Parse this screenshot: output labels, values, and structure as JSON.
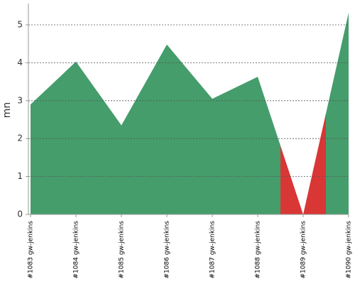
{
  "chart_data": {
    "type": "area",
    "y_label": "mn",
    "categories": [
      "#1083 gw-jenkins",
      "#1084 gw-jenkins",
      "#1085 gw-jenkins",
      "#1086 gw-jenkins",
      "#1087 gw-jenkins",
      "#1088 gw-jenkins",
      "#1089 gw-jenkins",
      "#1090 gw-jenkins"
    ],
    "values": [
      2.9,
      4.03,
      2.35,
      4.48,
      3.05,
      3.63,
      0,
      5.32
    ],
    "point_colors": [
      "#459d6c",
      "#459d6c",
      "#459d6c",
      "#459d6c",
      "#459d6c",
      "#459d6c",
      "#d93636",
      "#459d6c"
    ],
    "ylim": [
      0,
      5.5
    ],
    "yticks": [
      0,
      1,
      2,
      3,
      4,
      5
    ],
    "grid": true
  }
}
